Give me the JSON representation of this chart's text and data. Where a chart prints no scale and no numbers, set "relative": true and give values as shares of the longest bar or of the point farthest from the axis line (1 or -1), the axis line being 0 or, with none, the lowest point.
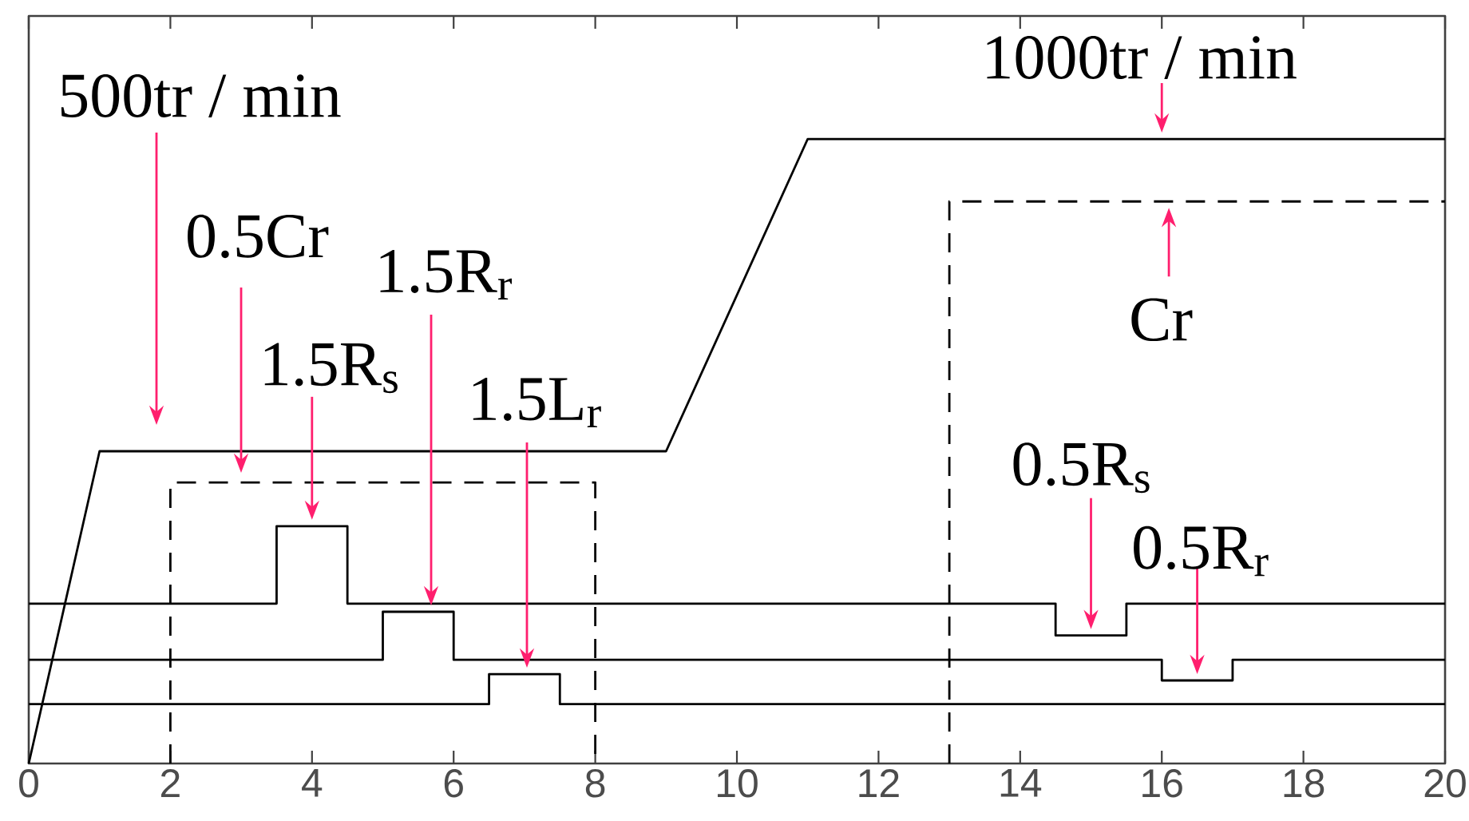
{
  "chart_data": {
    "type": "line",
    "relative": true,
    "xlim": [
      0,
      20
    ],
    "xticks": [
      0,
      2,
      4,
      6,
      8,
      10,
      12,
      14,
      16,
      18,
      20
    ],
    "grid": false,
    "marker": "none",
    "series": [
      {
        "color": "#000000",
        "line_style": "solid",
        "x": [
          0,
          1,
          9,
          11,
          20
        ],
        "values": [
          0,
          0.5,
          0.5,
          1,
          1
        ]
      },
      {
        "color": "#000000",
        "line_style": "dashed",
        "x": [
          2,
          2,
          8,
          8,
          10,
          13,
          13,
          20
        ],
        "values": [
          0,
          0.45,
          0.45,
          0,
          null,
          0,
          0.9,
          0.9
        ]
      },
      {
        "color": "#000000",
        "line_style": "solid",
        "x": [
          0,
          3.5,
          3.5,
          4.5,
          4.5,
          14.5,
          14.5,
          15.5,
          15.5,
          20
        ],
        "values": [
          0.256,
          0.256,
          0.38,
          0.38,
          0.256,
          0.256,
          0.205,
          0.205,
          0.256,
          0.256
        ]
      },
      {
        "color": "#000000",
        "line_style": "solid",
        "x": [
          0,
          5,
          5,
          6,
          6,
          16,
          16,
          17,
          17,
          20
        ],
        "values": [
          0.166,
          0.166,
          0.243,
          0.243,
          0.166,
          0.166,
          0.133,
          0.133,
          0.166,
          0.166
        ]
      },
      {
        "color": "#000000",
        "line_style": "solid",
        "x": [
          0,
          6.5,
          6.5,
          7.5,
          7.5,
          20
        ],
        "values": [
          0.095,
          0.095,
          0.143,
          0.143,
          0.095,
          0.095
        ]
      }
    ],
    "annotations": [
      "500tr / min",
      "0.5Cr",
      {
        "text": "1.5R$_{s}$",
        "x": 4,
        "y": 0.38
      },
      "1.5R$_{r}$",
      "1.5L$_{r}$",
      {
        "text": "1000tr / min",
        "x": 16,
        "y": 1
      },
      {
        "text": "Cr",
        "x": 16.1,
        "y": 0.9
      },
      {
        "text": "0.5R$_{s}$",
        "x": 15,
        "y": 0.205
      },
      {
        "text": "0.5R$_{r}$",
        "x": 16.5,
        "y": 0.133
      }
    ]
  }
}
